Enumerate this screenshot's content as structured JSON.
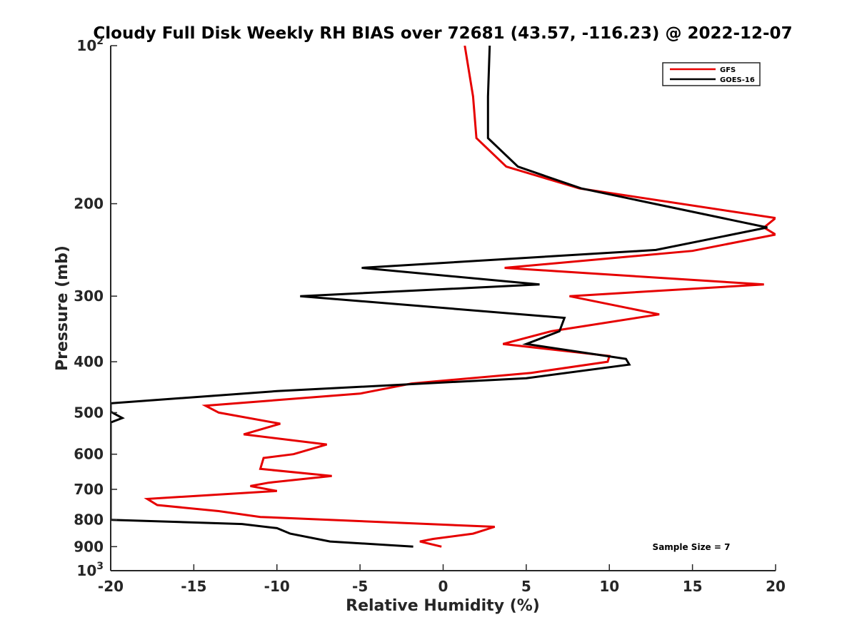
{
  "chart_data": {
    "type": "line",
    "title": "Cloudy Full Disk Weekly RH BIAS over 72681 (43.57, -116.23) @ 2022-12-07",
    "xlabel": "Relative Humidity (%)",
    "ylabel": "Pressure (mb)",
    "xlim": [
      -20,
      20
    ],
    "ylim": [
      100,
      1000
    ],
    "y_scale": "log",
    "y_reversed": true,
    "grid": false,
    "legend_position": "top-right",
    "x_ticks": [
      {
        "value": -20,
        "label": "-20"
      },
      {
        "value": -15,
        "label": "-15"
      },
      {
        "value": -10,
        "label": "-10"
      },
      {
        "value": -5,
        "label": "-5"
      },
      {
        "value": 0,
        "label": "0"
      },
      {
        "value": 5,
        "label": "5"
      },
      {
        "value": 10,
        "label": "10"
      },
      {
        "value": 15,
        "label": "15"
      },
      {
        "value": 20,
        "label": "20"
      }
    ],
    "y_ticks": [
      {
        "value": 100,
        "base": "10",
        "exp": "2"
      },
      {
        "value": 200,
        "label": "200"
      },
      {
        "value": 300,
        "label": "300"
      },
      {
        "value": 400,
        "label": "400"
      },
      {
        "value": 500,
        "label": "500"
      },
      {
        "value": 600,
        "label": "600"
      },
      {
        "value": 700,
        "label": "700"
      },
      {
        "value": 800,
        "label": "800"
      },
      {
        "value": 900,
        "label": "900"
      },
      {
        "value": 1000,
        "base": "10",
        "exp": "3"
      }
    ],
    "series": [
      {
        "name": "GFS",
        "color": "#e60000",
        "points": [
          [
            1.3,
            100
          ],
          [
            1.8,
            125
          ],
          [
            2.0,
            150
          ],
          [
            3.8,
            170
          ],
          [
            8.2,
            187
          ],
          [
            20.0,
            213
          ],
          [
            19.3,
            222
          ],
          [
            20.0,
            229
          ],
          [
            15.0,
            246
          ],
          [
            3.7,
            265
          ],
          [
            19.3,
            285
          ],
          [
            7.6,
            300
          ],
          [
            13.0,
            325
          ],
          [
            6.5,
            350
          ],
          [
            3.6,
            370
          ],
          [
            10.0,
            390
          ],
          [
            9.9,
            400
          ],
          [
            5.3,
            420
          ],
          [
            -1.9,
            440
          ],
          [
            -5.0,
            460
          ],
          [
            -14.3,
            485
          ],
          [
            -13.5,
            500
          ],
          [
            -9.8,
            525
          ],
          [
            -12.0,
            550
          ],
          [
            -7.0,
            575
          ],
          [
            -9.0,
            600
          ],
          [
            -10.8,
            610
          ],
          [
            -11.0,
            640
          ],
          [
            -6.7,
            660
          ],
          [
            -10.5,
            680
          ],
          [
            -11.6,
            690
          ],
          [
            -10.0,
            705
          ],
          [
            -17.8,
            730
          ],
          [
            -17.2,
            750
          ],
          [
            -13.5,
            770
          ],
          [
            -11.0,
            790
          ],
          [
            3.1,
            825
          ],
          [
            1.8,
            850
          ],
          [
            -0.6,
            870
          ],
          [
            -1.4,
            880
          ],
          [
            -0.1,
            900
          ]
        ]
      },
      {
        "name": "GOES-16",
        "color": "#000000",
        "points": [
          [
            2.8,
            100
          ],
          [
            2.7,
            125
          ],
          [
            2.7,
            150
          ],
          [
            4.5,
            170
          ],
          [
            8.3,
            187
          ],
          [
            19.5,
            222
          ],
          [
            12.8,
            245
          ],
          [
            -4.9,
            265
          ],
          [
            5.8,
            285
          ],
          [
            -8.6,
            300
          ],
          [
            7.3,
            330
          ],
          [
            7.0,
            350
          ],
          [
            5.0,
            370
          ],
          [
            11.0,
            395
          ],
          [
            11.2,
            405
          ],
          [
            5.0,
            430
          ],
          [
            -10.0,
            455
          ],
          [
            -20.0,
            480
          ],
          [
            -20.0,
            498
          ],
          [
            -19.3,
            512
          ],
          [
            -20.0,
            522
          ],
          [
            -20.0,
            800
          ],
          [
            -12.1,
            815
          ],
          [
            -10.0,
            830
          ],
          [
            -9.2,
            850
          ],
          [
            -6.8,
            880
          ],
          [
            -1.8,
            900
          ]
        ]
      }
    ],
    "annotation": "Sample Size = 7"
  }
}
